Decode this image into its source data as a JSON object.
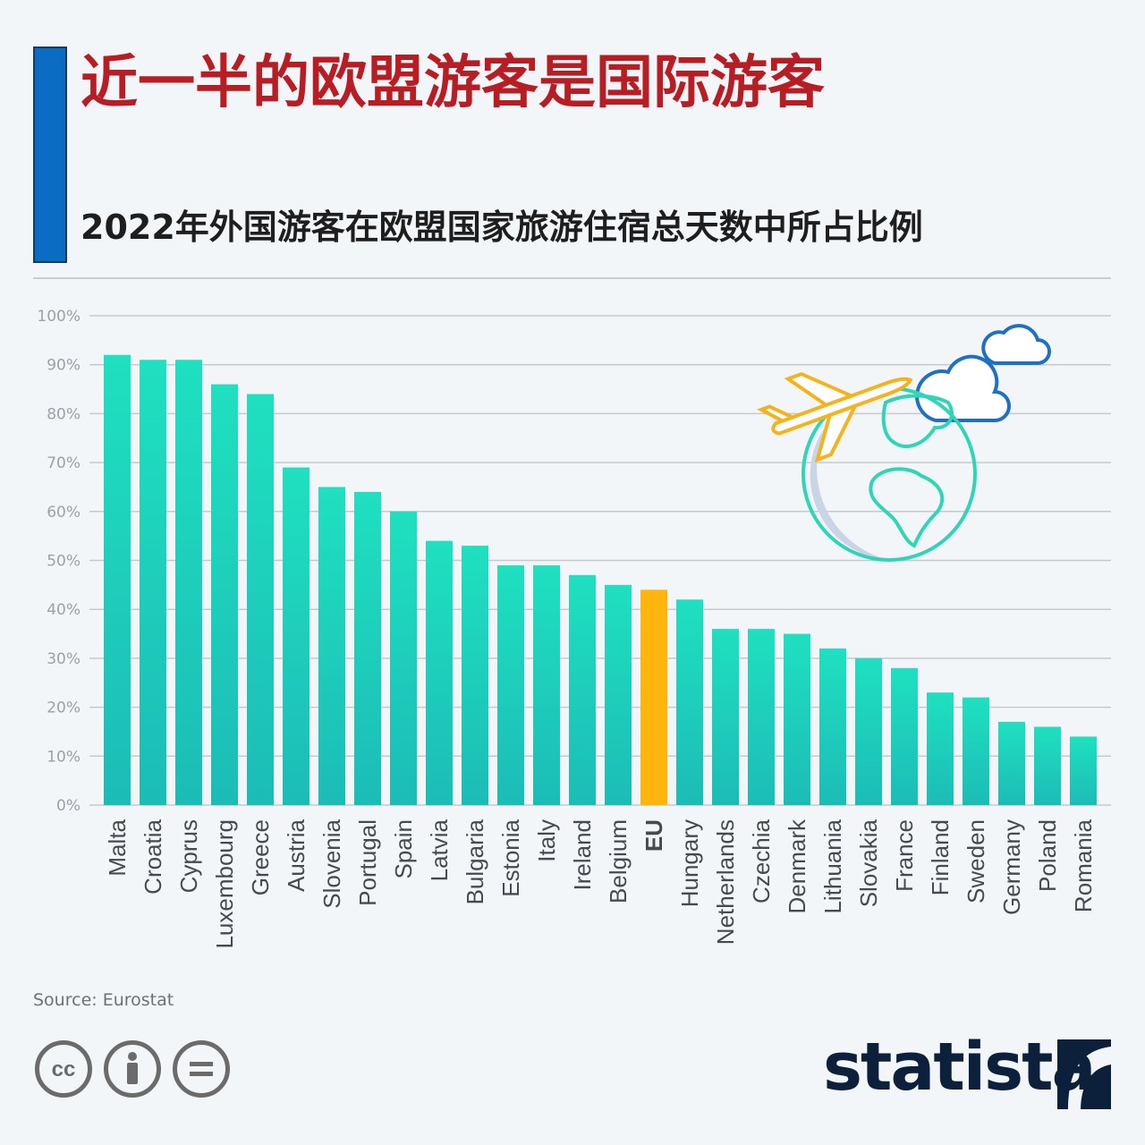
{
  "header": {
    "title": "近一半的欧盟游客是国际游客",
    "subtitle": "2022年外国游客在欧盟国家旅游住宿总天数中所占比例"
  },
  "footer": {
    "source": "Source: Eurostat",
    "brand": "statista",
    "license_icons": [
      "creative-commons-icon",
      "attribution-icon",
      "no-derivatives-icon"
    ]
  },
  "colors": {
    "bar_top": "#1fe0c0",
    "bar_bottom": "#1cbcb6",
    "highlight": "#ffb50d",
    "title": "#b81d24",
    "accent": "#0b6cc3"
  },
  "chart_data": {
    "type": "bar",
    "title": "近一半的欧盟游客是国际游客",
    "subtitle": "2022年外国游客在欧盟国家旅游住宿总天数中所占比例",
    "categories": [
      "Malta",
      "Croatia",
      "Cyprus",
      "Luxembourg",
      "Greece",
      "Austria",
      "Slovenia",
      "Portugal",
      "Spain",
      "Latvia",
      "Bulgaria",
      "Estonia",
      "Italy",
      "Ireland",
      "Belgium",
      "EU",
      "Hungary",
      "Netherlands",
      "Czechia",
      "Denmark",
      "Lithuania",
      "Slovakia",
      "France",
      "Finland",
      "Sweden",
      "Germany",
      "Poland",
      "Romania"
    ],
    "values": [
      92,
      91,
      91,
      86,
      84,
      69,
      65,
      64,
      60,
      54,
      53,
      49,
      49,
      47,
      45,
      44,
      42,
      36,
      36,
      35,
      32,
      30,
      28,
      23,
      22,
      17,
      16,
      14
    ],
    "highlight_category": "EU",
    "ylim": [
      0,
      100
    ],
    "yticks": [
      0,
      10,
      20,
      30,
      40,
      50,
      60,
      70,
      80,
      90,
      100
    ],
    "ytick_labels": [
      "0%",
      "10%",
      "20%",
      "30%",
      "40%",
      "50%",
      "60%",
      "70%",
      "80%",
      "90%",
      "100%"
    ],
    "xlabel": "",
    "ylabel": "",
    "grid": true,
    "legend": "none"
  }
}
